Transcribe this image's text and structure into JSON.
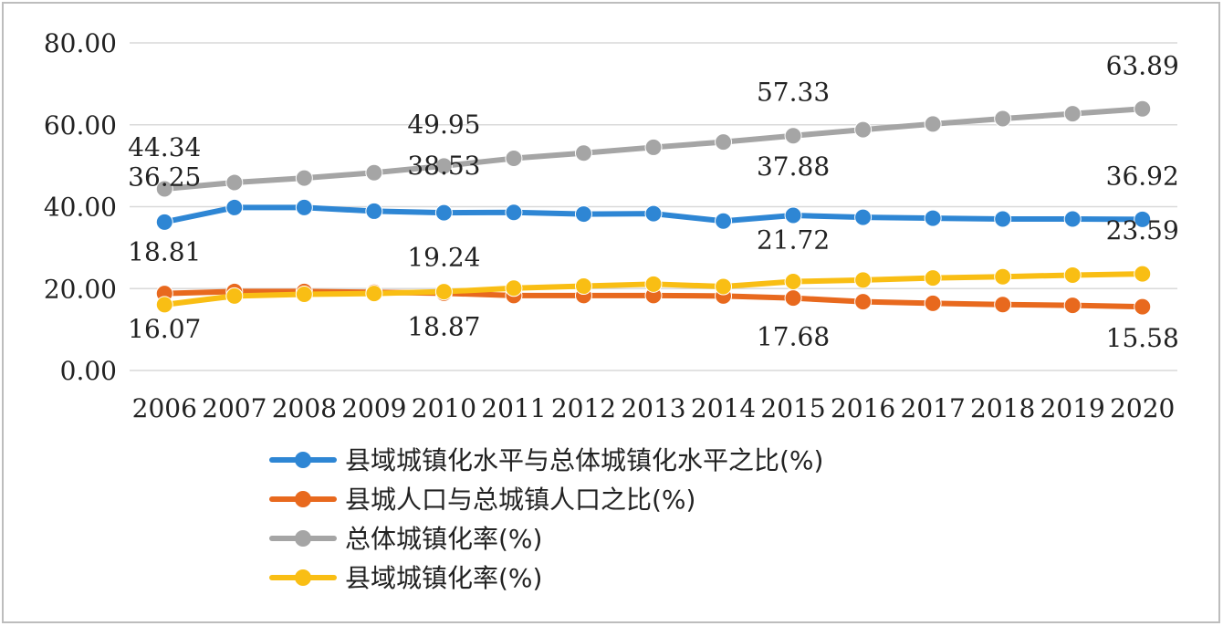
{
  "chart_data": {
    "type": "line",
    "x": [
      "2006",
      "2007",
      "2008",
      "2009",
      "2010",
      "2011",
      "2012",
      "2013",
      "2014",
      "2015",
      "2016",
      "2017",
      "2018",
      "2019",
      "2020"
    ],
    "ylim": [
      0,
      80
    ],
    "yticks": [
      "0.00",
      "20.00",
      "40.00",
      "60.00",
      "80.00"
    ],
    "grid": "horizontal",
    "legend_position": "bottom",
    "series": [
      {
        "name": "县域城镇化水平与总体城镇化水平之比(%)",
        "color": "#2E86D4",
        "values": [
          36.25,
          39.8,
          39.8,
          38.9,
          38.53,
          38.6,
          38.2,
          38.3,
          36.5,
          37.88,
          37.4,
          37.2,
          37.0,
          37.0,
          36.92
        ],
        "labels": [
          {
            "index": 0,
            "text": "36.25"
          },
          {
            "index": 4,
            "text": "38.53"
          },
          {
            "index": 9,
            "text": "37.88"
          },
          {
            "index": 14,
            "text": "36.92"
          }
        ]
      },
      {
        "name": "县城人口与总城镇人口之比(%)",
        "color": "#E8691E",
        "values": [
          18.81,
          19.3,
          19.3,
          19.1,
          18.87,
          18.3,
          18.3,
          18.3,
          18.2,
          17.68,
          16.8,
          16.4,
          16.1,
          15.9,
          15.58
        ],
        "labels": [
          {
            "index": 0,
            "text": "18.81"
          },
          {
            "index": 4,
            "text": "18.87"
          },
          {
            "index": 9,
            "text": "17.68"
          },
          {
            "index": 14,
            "text": "15.58"
          }
        ]
      },
      {
        "name": "总体城镇化率(%)",
        "color": "#A5A5A5",
        "values": [
          44.34,
          45.9,
          47.0,
          48.3,
          49.95,
          51.8,
          53.1,
          54.5,
          55.8,
          57.33,
          58.8,
          60.2,
          61.5,
          62.7,
          63.89
        ],
        "labels": [
          {
            "index": 0,
            "text": "44.34"
          },
          {
            "index": 4,
            "text": "49.95"
          },
          {
            "index": 9,
            "text": "57.33"
          },
          {
            "index": 14,
            "text": "63.89"
          }
        ]
      },
      {
        "name": "县域城镇化率(%)",
        "color": "#F9BE14",
        "values": [
          16.07,
          18.2,
          18.6,
          18.8,
          19.24,
          20.1,
          20.6,
          21.1,
          20.5,
          21.72,
          22.1,
          22.6,
          22.9,
          23.3,
          23.59
        ],
        "labels": [
          {
            "index": 0,
            "text": "16.07"
          },
          {
            "index": 4,
            "text": "19.24"
          },
          {
            "index": 9,
            "text": "21.72"
          },
          {
            "index": 14,
            "text": "23.59"
          }
        ]
      }
    ]
  }
}
